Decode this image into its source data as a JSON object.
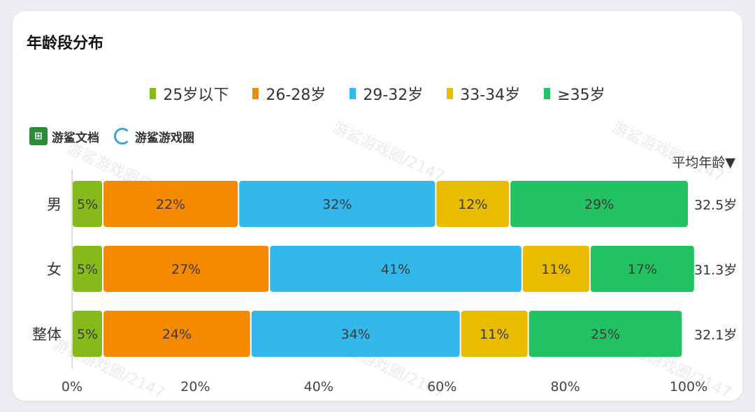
{
  "title": "年龄段分布",
  "brands": {
    "doc": "游鲨文档",
    "circle": "游鲨游戏圈",
    "doc_icon": "grid-sheet-icon",
    "circle_icon": "swirl-logo-icon"
  },
  "avg_header": "平均年龄▼",
  "watermark": "游鲨游戏圈/2147",
  "chart_data": {
    "type": "bar",
    "orientation": "horizontal",
    "stacked": true,
    "percent": true,
    "categories": [
      "男",
      "女",
      "整体"
    ],
    "series": [
      {
        "name": "25岁以下",
        "color": "#86b91a",
        "values": [
          5,
          5,
          5
        ],
        "labels": [
          "5%",
          "5%",
          "5%"
        ]
      },
      {
        "name": "26-28岁",
        "color": "#f38a00",
        "values": [
          22,
          27,
          24
        ],
        "labels": [
          "22%",
          "27%",
          "24%"
        ]
      },
      {
        "name": "29-32岁",
        "color": "#33b8ec",
        "values": [
          32,
          41,
          34
        ],
        "labels": [
          "32%",
          "41%",
          "34%"
        ]
      },
      {
        "name": "33-34岁",
        "color": "#eabc00",
        "values": [
          12,
          11,
          11
        ],
        "labels": [
          "12%",
          "11%",
          "11%"
        ]
      },
      {
        "name": "≥35岁",
        "color": "#22c262",
        "values": [
          29,
          17,
          25
        ],
        "labels": [
          "29%",
          "17%",
          "25%"
        ]
      }
    ],
    "average_ages": [
      "32.5岁",
      "31.3岁",
      "32.1岁"
    ],
    "xlim": [
      0,
      100
    ],
    "xticks": [
      "0%",
      "20%",
      "40%",
      "60%",
      "80%",
      "100%"
    ],
    "grid": false,
    "legend_position": "top"
  }
}
